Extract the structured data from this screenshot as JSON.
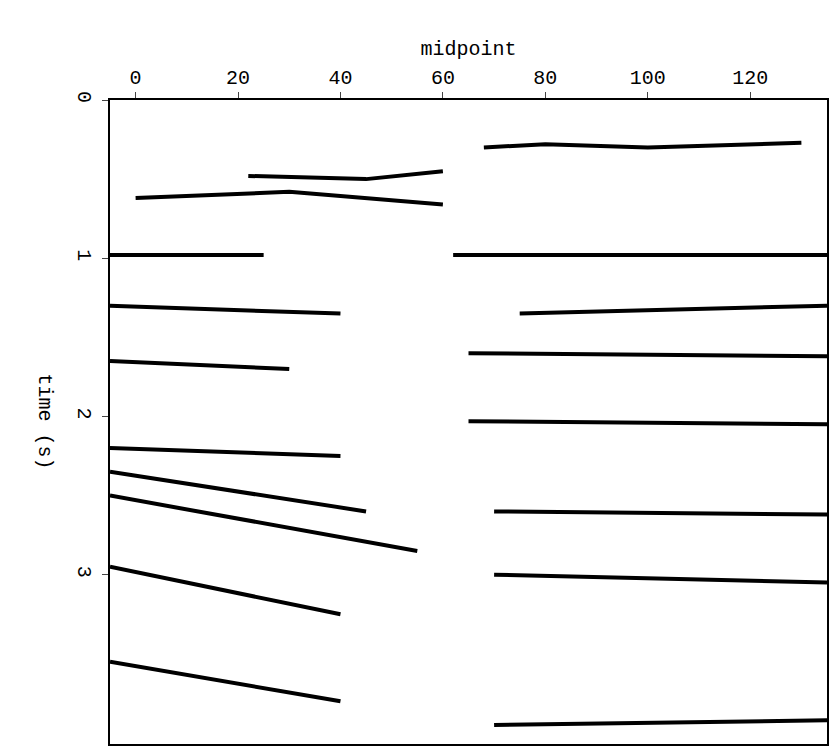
{
  "chart_data": {
    "type": "seismic",
    "x_label": "midpoint",
    "y_label": "time (s)",
    "xlim": [
      -5,
      135
    ],
    "xticks": [
      0,
      20,
      40,
      60,
      80,
      100,
      120
    ],
    "ylim": [
      4.07,
      0
    ],
    "yticks": [
      0,
      1,
      2,
      3
    ],
    "grid": false,
    "color": "#000000",
    "reflectors": [
      {
        "x": [
          68,
          80,
          100,
          130
        ],
        "t": [
          0.3,
          0.28,
          0.3,
          0.27
        ]
      },
      {
        "x": [
          0,
          30,
          60
        ],
        "t": [
          0.62,
          0.58,
          0.66
        ]
      },
      {
        "x": [
          22,
          45,
          60
        ],
        "t": [
          0.48,
          0.5,
          0.45
        ]
      },
      {
        "x": [
          -5,
          25
        ],
        "t": [
          0.98,
          0.98
        ]
      },
      {
        "x": [
          62,
          135
        ],
        "t": [
          0.98,
          0.98
        ]
      },
      {
        "x": [
          75,
          135
        ],
        "t": [
          1.35,
          1.3
        ]
      },
      {
        "x": [
          -5,
          40
        ],
        "t": [
          1.3,
          1.35
        ]
      },
      {
        "x": [
          -5,
          30
        ],
        "t": [
          1.65,
          1.7
        ]
      },
      {
        "x": [
          65,
          135
        ],
        "t": [
          1.6,
          1.62
        ]
      },
      {
        "x": [
          -5,
          40
        ],
        "t": [
          2.2,
          2.25
        ]
      },
      {
        "x": [
          65,
          135
        ],
        "t": [
          2.03,
          2.05
        ]
      },
      {
        "x": [
          -5,
          45
        ],
        "t": [
          2.35,
          2.6
        ]
      },
      {
        "x": [
          -5,
          55
        ],
        "t": [
          2.5,
          2.85
        ]
      },
      {
        "x": [
          -5,
          40
        ],
        "t": [
          2.95,
          3.25
        ]
      },
      {
        "x": [
          70,
          135
        ],
        "t": [
          2.6,
          2.62
        ]
      },
      {
        "x": [
          70,
          135
        ],
        "t": [
          3.0,
          3.05
        ]
      },
      {
        "x": [
          -5,
          40
        ],
        "t": [
          3.55,
          3.8
        ]
      },
      {
        "x": [
          70,
          135
        ],
        "t": [
          3.95,
          3.92
        ]
      }
    ]
  }
}
